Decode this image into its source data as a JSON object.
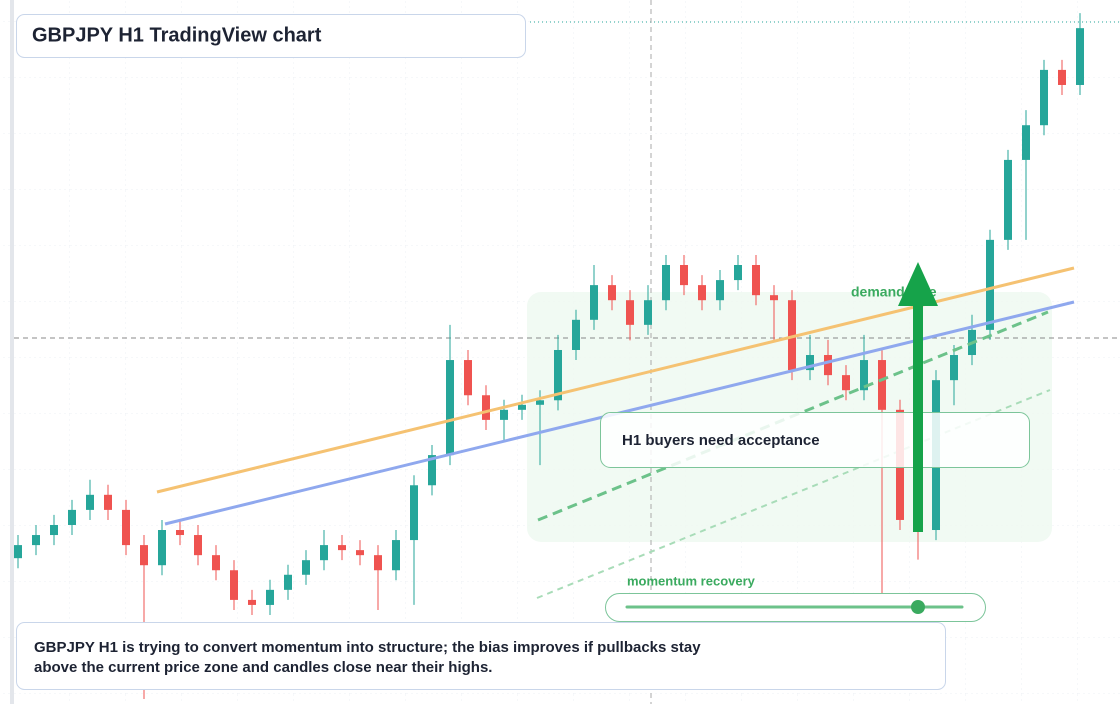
{
  "header": {
    "title": "GBPJPY H1 TradingView chart"
  },
  "chart_data": {
    "type": "candlestick",
    "open": [
      190.9,
      191.16,
      191.36,
      191.56,
      191.86,
      192.16,
      191.86,
      191.16,
      190.76,
      191.46,
      191.36,
      190.96,
      190.66,
      190.07,
      189.97,
      190.27,
      190.57,
      190.86,
      191.16,
      191.06,
      190.96,
      190.66,
      191.26,
      192.35,
      192.95,
      194.84,
      194.14,
      193.65,
      193.85,
      193.95,
      194.04,
      195.04,
      195.64,
      196.33,
      196.03,
      195.54,
      196.03,
      196.73,
      196.33,
      196.03,
      196.43,
      196.73,
      196.13,
      196.03,
      194.64,
      194.94,
      194.54,
      194.24,
      194.84,
      193.85,
      191.66,
      191.46,
      194.44,
      194.94,
      195.44,
      197.23,
      198.82,
      199.51,
      200.61,
      200.31
    ],
    "high": [
      191.36,
      191.56,
      191.76,
      192.06,
      192.46,
      192.36,
      192.06,
      191.36,
      191.66,
      191.66,
      191.56,
      191.16,
      190.86,
      190.27,
      190.47,
      190.77,
      191.06,
      191.46,
      191.36,
      191.26,
      191.16,
      191.46,
      192.55,
      193.15,
      195.54,
      195.04,
      194.34,
      194.05,
      194.15,
      194.24,
      195.34,
      195.84,
      196.73,
      196.53,
      196.23,
      196.33,
      196.93,
      196.93,
      196.53,
      196.63,
      196.93,
      196.93,
      196.33,
      196.23,
      195.34,
      195.24,
      194.74,
      195.34,
      195.04,
      194.05,
      191.86,
      194.64,
      195.14,
      195.74,
      197.43,
      199.02,
      199.81,
      200.81,
      200.81,
      201.74
    ],
    "low": [
      190.7,
      190.96,
      191.16,
      191.36,
      191.66,
      191.66,
      190.96,
      188.1,
      190.56,
      191.16,
      190.76,
      190.46,
      189.87,
      189.77,
      189.77,
      190.07,
      190.37,
      190.66,
      190.86,
      190.76,
      189.87,
      190.46,
      189.97,
      192.15,
      192.75,
      193.94,
      193.45,
      193.25,
      193.65,
      192.75,
      193.84,
      194.84,
      195.44,
      195.83,
      195.23,
      195.34,
      195.83,
      196.13,
      195.83,
      195.83,
      196.23,
      195.93,
      195.24,
      194.44,
      194.44,
      194.34,
      194.04,
      194.04,
      188.3,
      191.46,
      190.87,
      191.26,
      193.94,
      194.74,
      195.24,
      197.03,
      197.23,
      199.31,
      200.11,
      200.11
    ],
    "close": [
      191.16,
      191.36,
      191.56,
      191.86,
      192.16,
      191.86,
      191.16,
      190.76,
      191.46,
      191.36,
      190.96,
      190.66,
      190.07,
      189.97,
      190.27,
      190.57,
      190.86,
      191.16,
      191.06,
      190.96,
      190.66,
      191.26,
      192.35,
      192.95,
      194.84,
      194.14,
      193.65,
      193.85,
      193.95,
      194.04,
      195.04,
      195.64,
      196.33,
      196.03,
      195.54,
      196.03,
      196.73,
      196.33,
      196.03,
      196.43,
      196.73,
      196.13,
      196.03,
      194.64,
      194.94,
      194.54,
      194.24,
      194.84,
      193.85,
      191.66,
      191.46,
      194.44,
      194.94,
      195.44,
      197.23,
      198.82,
      199.51,
      200.61,
      200.31,
      201.44
    ],
    "up_color": "#26a69a",
    "down_color": "#ef5350",
    "ylim": [
      188,
      202
    ]
  },
  "annotations": {
    "zone": "demand side",
    "note": "H1 buyers need acceptance",
    "indicator": "momentum recovery"
  },
  "footer": {
    "lines": [
      "GBPJPY H1 is trying to convert momentum into structure; the bias improves if pullbacks stay",
      "above the current price zone and candles close near their highs."
    ]
  }
}
